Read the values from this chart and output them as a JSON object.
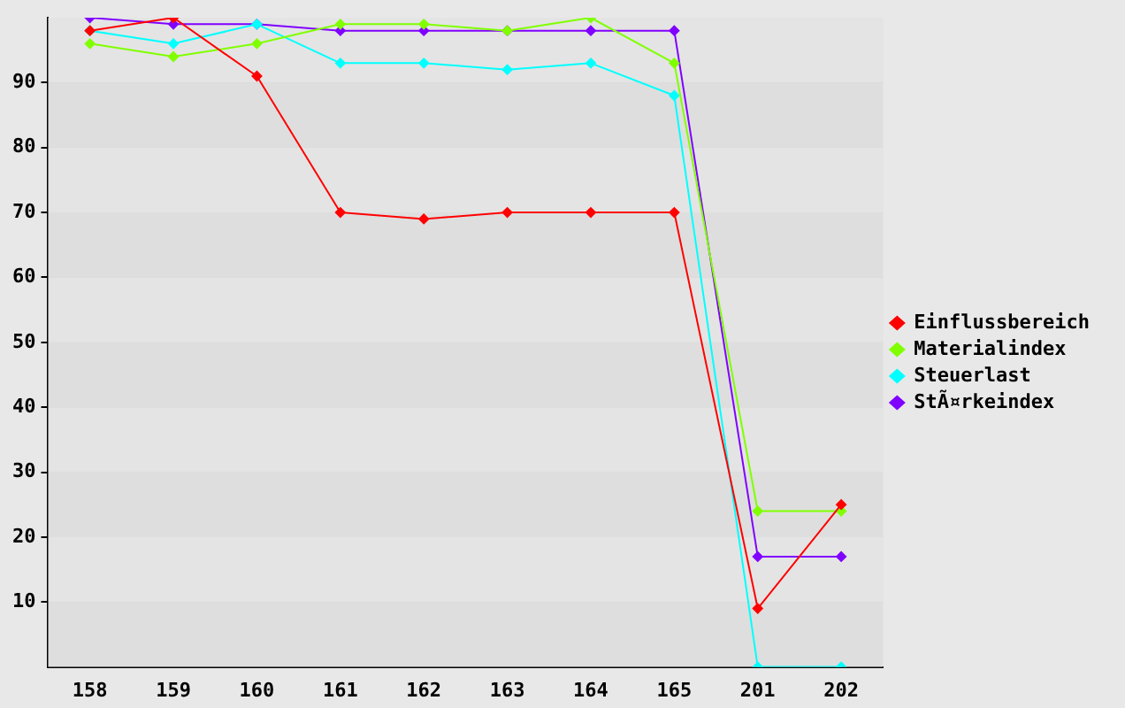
{
  "chart_data": {
    "type": "line",
    "categories": [
      "158",
      "159",
      "160",
      "161",
      "162",
      "163",
      "164",
      "165",
      "201",
      "202"
    ],
    "series": [
      {
        "name": "Einflussbereich",
        "color": "#ff0000",
        "values": [
          98,
          100,
          91,
          70,
          69,
          70,
          70,
          70,
          9,
          25
        ]
      },
      {
        "name": "Materialindex",
        "color": "#80ff00",
        "values": [
          96,
          94,
          96,
          99,
          99,
          98,
          100,
          93,
          24,
          24
        ]
      },
      {
        "name": "Steuerlast",
        "color": "#00ffff",
        "values": [
          98,
          96,
          99,
          93,
          93,
          92,
          93,
          88,
          0,
          0
        ]
      },
      {
        "name": "StÃ¤rkeindex",
        "color": "#8000ff",
        "values": [
          100,
          99,
          99,
          98,
          98,
          98,
          98,
          98,
          17,
          17
        ]
      }
    ],
    "ylim": [
      0,
      100
    ],
    "yticks": [
      10,
      20,
      30,
      40,
      50,
      60,
      70,
      80,
      90
    ],
    "grid": "y",
    "legend": "right",
    "marker": "diamond",
    "line_style": "solid"
  }
}
